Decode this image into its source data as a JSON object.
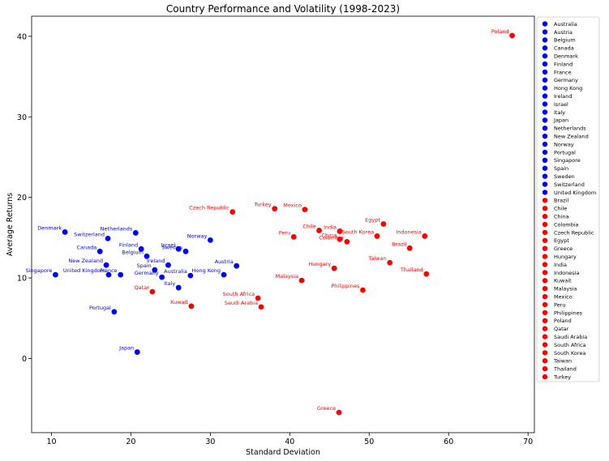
{
  "chart_data": {
    "type": "scatter",
    "title": "Country Performance and Volatility (1998-2023)",
    "xlabel": "Standard Deviation",
    "ylabel": "Average Returns",
    "xlim": [
      7.5,
      70.8
    ],
    "ylim": [
      -9.2,
      42.5
    ],
    "xticks": [
      10,
      20,
      30,
      40,
      50,
      60,
      70
    ],
    "yticks": [
      0,
      10,
      20,
      30,
      40
    ],
    "grid": false,
    "legend_position": "right",
    "series": [
      {
        "group": "developed",
        "color": "#0000ff",
        "points": [
          {
            "name": "Australia",
            "x": 27.5,
            "y": 10.3
          },
          {
            "name": "Austria",
            "x": 33.3,
            "y": 11.5
          },
          {
            "name": "Belgium",
            "x": 22.0,
            "y": 12.7
          },
          {
            "name": "Canada",
            "x": 16.1,
            "y": 13.3
          },
          {
            "name": "Denmark",
            "x": 11.7,
            "y": 15.7
          },
          {
            "name": "Finland",
            "x": 21.3,
            "y": 13.6
          },
          {
            "name": "France",
            "x": 18.7,
            "y": 10.4
          },
          {
            "name": "Germany",
            "x": 23.9,
            "y": 10.1
          },
          {
            "name": "Hong Kong",
            "x": 31.7,
            "y": 10.4
          },
          {
            "name": "Ireland",
            "x": 24.7,
            "y": 11.6
          },
          {
            "name": "Israel",
            "x": 26.0,
            "y": 13.6
          },
          {
            "name": "Italy",
            "x": 26.0,
            "y": 8.8
          },
          {
            "name": "Japan",
            "x": 20.8,
            "y": 0.8
          },
          {
            "name": "Netherlands",
            "x": 20.6,
            "y": 15.6
          },
          {
            "name": "New Zealand",
            "x": 16.9,
            "y": 11.6
          },
          {
            "name": "Norway",
            "x": 30.0,
            "y": 14.7
          },
          {
            "name": "Portugal",
            "x": 17.9,
            "y": 5.8
          },
          {
            "name": "Singapore",
            "x": 10.5,
            "y": 10.4
          },
          {
            "name": "Spain",
            "x": 23.0,
            "y": 11.0
          },
          {
            "name": "Sweden",
            "x": 26.9,
            "y": 13.3
          },
          {
            "name": "Switzerland",
            "x": 17.1,
            "y": 14.9
          },
          {
            "name": "United Kingdom",
            "x": 17.2,
            "y": 10.4
          }
        ]
      },
      {
        "group": "emerging",
        "color": "#ff0000",
        "points": [
          {
            "name": "Brazil",
            "x": 55.1,
            "y": 13.7
          },
          {
            "name": "Chile",
            "x": 43.7,
            "y": 15.9
          },
          {
            "name": "China",
            "x": 46.3,
            "y": 14.8
          },
          {
            "name": "Colombia",
            "x": 47.2,
            "y": 14.5
          },
          {
            "name": "Czech Republic",
            "x": 32.8,
            "y": 18.2
          },
          {
            "name": "Egypt",
            "x": 51.8,
            "y": 16.7
          },
          {
            "name": "Greece",
            "x": 46.2,
            "y": -6.7
          },
          {
            "name": "Hungary",
            "x": 45.6,
            "y": 11.2
          },
          {
            "name": "India",
            "x": 46.3,
            "y": 15.8
          },
          {
            "name": "Indonesia",
            "x": 57.0,
            "y": 15.2
          },
          {
            "name": "Kuwait",
            "x": 27.6,
            "y": 6.5
          },
          {
            "name": "Malaysia",
            "x": 41.5,
            "y": 9.7
          },
          {
            "name": "Mexico",
            "x": 41.9,
            "y": 18.5
          },
          {
            "name": "Peru",
            "x": 40.5,
            "y": 15.1
          },
          {
            "name": "Philippines",
            "x": 49.2,
            "y": 8.5
          },
          {
            "name": "Poland",
            "x": 68.0,
            "y": 40.1
          },
          {
            "name": "Qatar",
            "x": 22.7,
            "y": 8.3
          },
          {
            "name": "Saudi Arabia",
            "x": 36.4,
            "y": 6.4
          },
          {
            "name": "South Africa",
            "x": 36.0,
            "y": 7.5
          },
          {
            "name": "South Korea",
            "x": 51.0,
            "y": 15.2
          },
          {
            "name": "Taiwan",
            "x": 52.6,
            "y": 11.9
          },
          {
            "name": "Thailand",
            "x": 57.2,
            "y": 10.5
          },
          {
            "name": "Turkey",
            "x": 38.1,
            "y": 18.6
          }
        ]
      }
    ],
    "legend": [
      "Australia",
      "Austria",
      "Belgium",
      "Canada",
      "Denmark",
      "Finland",
      "France",
      "Germany",
      "Hong Kong",
      "Ireland",
      "Israel",
      "Italy",
      "Japan",
      "Netherlands",
      "New Zealand",
      "Norway",
      "Portugal",
      "Singapore",
      "Spain",
      "Sweden",
      "Switzerland",
      "United Kingdom",
      "Brazil",
      "Chile",
      "China",
      "Colombia",
      "Czech Republic",
      "Egypt",
      "Greece",
      "Hungary",
      "India",
      "Indonesia",
      "Kuwait",
      "Malaysia",
      "Mexico",
      "Peru",
      "Philippines",
      "Poland",
      "Qatar",
      "Saudi Arabia",
      "South Africa",
      "South Korea",
      "Taiwan",
      "Thailand",
      "Turkey"
    ]
  }
}
